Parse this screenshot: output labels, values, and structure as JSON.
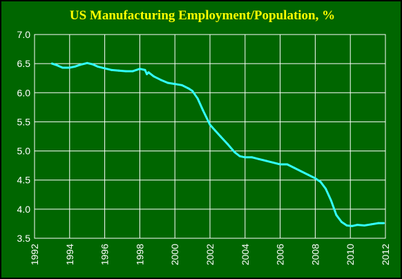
{
  "chart_data": {
    "type": "line",
    "title": "US Manufacturing Employment/Population, %",
    "xlabel": "",
    "ylabel": "",
    "xlim": [
      1992,
      2012
    ],
    "ylim": [
      3.5,
      7.0
    ],
    "x_ticks": [
      1992,
      1994,
      1996,
      1998,
      2000,
      2002,
      2004,
      2006,
      2008,
      2010,
      2012
    ],
    "y_ticks": [
      "3.5",
      "4.0",
      "4.5",
      "5.0",
      "5.5",
      "6.0",
      "6.5",
      "7.0"
    ],
    "grid": true,
    "colors": {
      "background": "#006600",
      "line": "#33ffff",
      "grid": "#ffffff",
      "title": "#ffff00",
      "text": "#ffffff"
    },
    "series": [
      {
        "x": [
          1993.0,
          1993.3,
          1993.6,
          1994.0,
          1994.3,
          1994.6,
          1995.0,
          1995.3,
          1995.6,
          1996.0,
          1996.4,
          1996.8,
          1997.2,
          1997.6,
          1998.0,
          1998.3,
          1998.4,
          1998.5,
          1998.8,
          1999.2,
          1999.6,
          2000.0,
          2000.4,
          2000.8,
          2001.0,
          2001.3,
          2001.6,
          2002.0,
          2002.3,
          2002.6,
          2003.0,
          2003.4,
          2003.7,
          2004.0,
          2004.4,
          2004.8,
          2005.2,
          2005.6,
          2006.0,
          2006.4,
          2006.8,
          2007.2,
          2007.6,
          2008.0,
          2008.3,
          2008.6,
          2008.9,
          2009.2,
          2009.5,
          2009.8,
          2010.1,
          2010.4,
          2010.8,
          2011.2,
          2011.6,
          2011.9
        ],
        "y": [
          6.5,
          6.47,
          6.43,
          6.43,
          6.45,
          6.48,
          6.51,
          6.49,
          6.45,
          6.42,
          6.39,
          6.38,
          6.37,
          6.37,
          6.41,
          6.39,
          6.32,
          6.35,
          6.28,
          6.22,
          6.17,
          6.15,
          6.13,
          6.07,
          6.03,
          5.9,
          5.7,
          5.45,
          5.35,
          5.25,
          5.12,
          4.98,
          4.91,
          4.89,
          4.89,
          4.86,
          4.83,
          4.8,
          4.77,
          4.77,
          4.71,
          4.65,
          4.59,
          4.53,
          4.47,
          4.35,
          4.15,
          3.9,
          3.78,
          3.72,
          3.71,
          3.73,
          3.72,
          3.74,
          3.76,
          3.76
        ]
      }
    ]
  }
}
